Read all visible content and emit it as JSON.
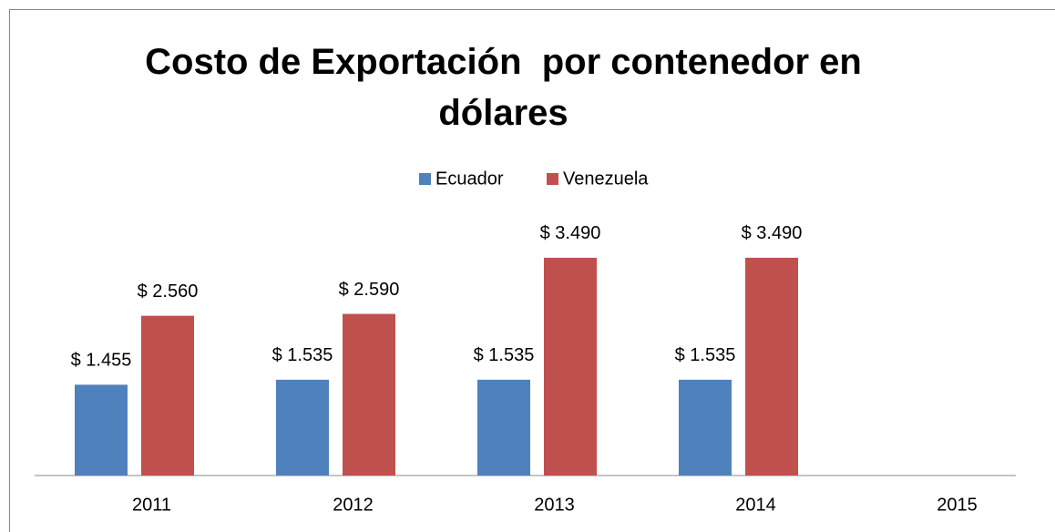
{
  "chart_data": {
    "type": "bar",
    "title": "Costo de Exportación  por contenedor en dólares",
    "categories": [
      "2011",
      "2012",
      "2013",
      "2014",
      "2015"
    ],
    "series": [
      {
        "name": "Ecuador",
        "color": "#4f81bd",
        "values": [
          1455,
          1535,
          1535,
          1535,
          null
        ],
        "value_labels": [
          "$ 1.455",
          "$ 1.535",
          "$ 1.535",
          "$ 1.535",
          null
        ]
      },
      {
        "name": "Venezuela",
        "color": "#c0504d",
        "values": [
          2560,
          2590,
          3490,
          3490,
          null
        ],
        "value_labels": [
          "$ 2.560",
          "$ 2.590",
          "$ 3.490",
          "$ 3.490",
          null
        ]
      }
    ],
    "ylim": [
      0,
      4000
    ],
    "legend": "top"
  }
}
